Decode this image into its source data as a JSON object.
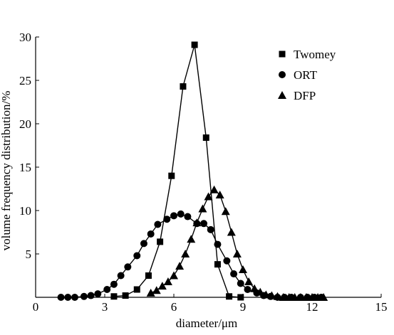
{
  "chart_data": {
    "type": "line",
    "title": "",
    "xlabel": "diameter/μm",
    "ylabel": "volume frequency distribution/%",
    "xlim": [
      0,
      15
    ],
    "ylim": [
      0,
      30
    ],
    "xticks": [
      0,
      3,
      6,
      9,
      12,
      15
    ],
    "yticks": [
      5,
      10,
      15,
      20,
      25,
      30
    ],
    "ytick_labels": [
      "5",
      "10",
      "15",
      "20",
      "25",
      "30"
    ],
    "xtick_labels": [
      "0",
      "3",
      "6",
      "9",
      "12",
      "15"
    ],
    "grid": false,
    "legend_position": "top-right",
    "series": [
      {
        "name": "Twomey",
        "marker": "square",
        "x": [
          3.4,
          3.9,
          4.4,
          4.9,
          5.4,
          5.9,
          6.4,
          6.9,
          7.4,
          7.9,
          8.4,
          8.9
        ],
        "y": [
          0.1,
          0.2,
          0.9,
          2.5,
          6.4,
          14.0,
          24.3,
          29.1,
          18.4,
          3.8,
          0.1,
          0.0
        ]
      },
      {
        "name": "ORT",
        "marker": "circle",
        "x": [
          1.1,
          1.4,
          1.7,
          2.1,
          2.4,
          2.7,
          3.1,
          3.4,
          3.7,
          4.0,
          4.4,
          4.7,
          5.0,
          5.3,
          5.7,
          6.0,
          6.3,
          6.6,
          7.0,
          7.3,
          7.6,
          7.9,
          8.3,
          8.6,
          8.9,
          9.2,
          9.6,
          9.9,
          10.2,
          10.5,
          10.8,
          11.1,
          11.5,
          11.8,
          12.1,
          12.4
        ],
        "y": [
          0.0,
          0.0,
          0.0,
          0.1,
          0.2,
          0.4,
          0.9,
          1.5,
          2.5,
          3.5,
          4.8,
          6.2,
          7.3,
          8.4,
          9.0,
          9.4,
          9.6,
          9.3,
          8.5,
          8.5,
          7.8,
          6.1,
          4.2,
          2.7,
          1.6,
          0.9,
          0.5,
          0.2,
          0.1,
          0.0,
          0.0,
          0.0,
          0.0,
          0.0,
          0.0,
          0.0
        ]
      },
      {
        "name": "DFP",
        "marker": "triangle",
        "x": [
          5.0,
          5.25,
          5.5,
          5.75,
          6.0,
          6.25,
          6.5,
          6.75,
          7.0,
          7.25,
          7.5,
          7.75,
          8.0,
          8.25,
          8.5,
          8.75,
          9.0,
          9.25,
          9.5,
          9.75,
          10.0,
          10.25,
          10.5,
          10.75,
          11.0,
          11.25,
          11.5,
          11.75,
          12.0,
          12.25,
          12.5
        ],
        "y": [
          0.5,
          0.8,
          1.3,
          1.8,
          2.5,
          3.6,
          5.0,
          6.7,
          8.6,
          10.2,
          11.6,
          12.4,
          11.8,
          9.9,
          7.5,
          5.0,
          3.2,
          1.8,
          1.0,
          0.6,
          0.3,
          0.2,
          0.1,
          0.0,
          0.0,
          0.0,
          0.0,
          0.0,
          0.0,
          0.0,
          0.0
        ]
      }
    ]
  }
}
